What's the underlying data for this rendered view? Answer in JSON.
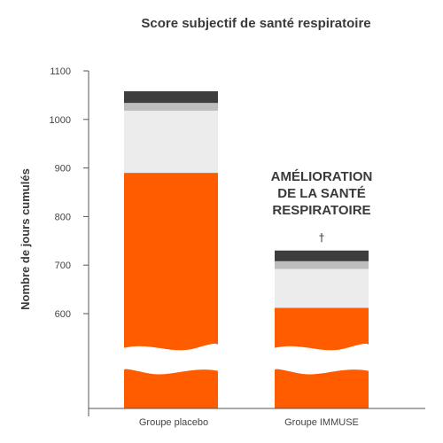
{
  "chart_data": {
    "type": "bar",
    "stacked": true,
    "title": "Score subjectif de santé respiratoire",
    "xlabel": "",
    "ylabel": "Nombre de jours cumulés",
    "ylim": [
      500,
      1100
    ],
    "yticks": [
      "1100",
      "1000",
      "900",
      "800",
      "700",
      "600"
    ],
    "y_axis_break": true,
    "grid": false,
    "categories": [
      "Groupe placebo",
      "Groupe IMMUSE"
    ],
    "series": [
      {
        "values": [
          890,
          612
        ],
        "color": "#ff5c00"
      },
      {
        "values": [
          128,
          80
        ],
        "color": "#ececec"
      },
      {
        "values": [
          16,
          16
        ],
        "color": "#bdbdbd"
      },
      {
        "values": [
          24,
          22
        ],
        "color": "#3d3d3d"
      }
    ],
    "annotation": {
      "lines": [
        "AMÉLIORATION",
        "DE LA SANTÉ",
        "RESPIRATOIRE"
      ],
      "marker": "†"
    }
  }
}
